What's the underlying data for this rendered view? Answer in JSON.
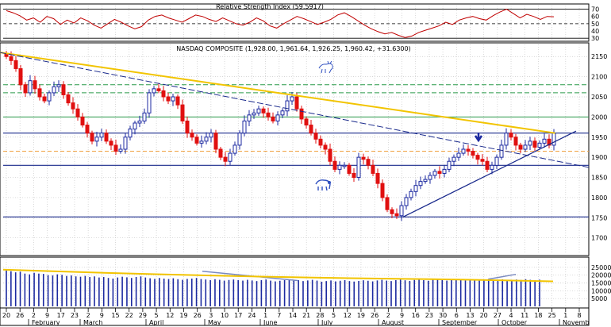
{
  "chart_data": [
    {
      "type": "line",
      "panel": "rsi",
      "title": "Relative Strength Index (59.5917)",
      "ylim": [
        28,
        75
      ],
      "y_ticks": [
        30,
        40,
        50,
        60,
        70
      ],
      "reference_lines": [
        70,
        50,
        30
      ],
      "values": [
        68,
        65,
        61,
        55,
        58,
        52,
        60,
        57,
        49,
        55,
        51,
        58,
        54,
        48,
        44,
        50,
        56,
        52,
        47,
        43,
        46,
        55,
        60,
        62,
        58,
        55,
        52,
        57,
        62,
        60,
        56,
        53,
        58,
        54,
        50,
        48,
        52,
        58,
        54,
        47,
        44,
        50,
        55,
        60,
        57,
        53,
        49,
        52,
        56,
        62,
        65,
        60,
        54,
        48,
        43,
        39,
        36,
        38,
        34,
        31,
        33,
        38,
        41,
        44,
        47,
        52,
        49,
        55,
        58,
        60,
        57,
        55,
        61,
        66,
        70,
        64,
        58,
        63,
        60,
        56,
        60,
        59.6
      ]
    },
    {
      "type": "candlestick",
      "panel": "price",
      "title": "NASDAQ COMPOSITE (1,928.00, 1,961.64, 1,926.25, 1,960.42, +31.6300)",
      "ylim": [
        1660,
        2180
      ],
      "y_ticks": [
        1700,
        1750,
        1800,
        1850,
        1900,
        1950,
        2000,
        2050,
        2100,
        2150
      ],
      "x_tick_labels": [
        "20",
        "26",
        "2",
        "9",
        "17",
        "23",
        "2",
        "9",
        "15",
        "22",
        "29",
        "5",
        "12",
        "19",
        "26",
        "3",
        "10",
        "17",
        "24",
        "1",
        "7",
        "14",
        "21",
        "28",
        "5",
        "12",
        "19",
        "26",
        "2",
        "9",
        "16",
        "23",
        "30",
        "6",
        "13",
        "20",
        "27",
        "4",
        "11",
        "18",
        "25",
        "1",
        "8"
      ],
      "month_labels": [
        "February",
        "March",
        "April",
        "May",
        "June",
        "July",
        "August",
        "September",
        "October",
        "Novemb"
      ],
      "horizontal_levels": [
        1960,
        1880,
        1752
      ],
      "support_levels": [
        1915
      ],
      "resistance_levels": [
        2080,
        2060,
        2000
      ],
      "trendlines": [
        {
          "name": "yellow-downtrend",
          "from": [
            "20",
            2160
          ],
          "to": [
            "25",
            1960
          ]
        },
        {
          "name": "blue-dashed-downtrend",
          "from": [
            "20",
            2160
          ],
          "to": [
            "8",
            1880
          ]
        },
        {
          "name": "blue-uptrend",
          "from": [
            "9",
            1752
          ],
          "to": [
            "8",
            1965
          ]
        }
      ],
      "annotations": [
        "bull-icon",
        "bear-icon",
        "down-arrow-icon"
      ],
      "close_values": [
        2150,
        2140,
        2120,
        2080,
        2060,
        2090,
        2070,
        2050,
        2040,
        2060,
        2075,
        2080,
        2055,
        2035,
        2020,
        2000,
        1980,
        1960,
        1940,
        1950,
        1960,
        1940,
        1930,
        1915,
        1920,
        1950,
        1970,
        1985,
        1990,
        2010,
        2060,
        2070,
        2065,
        2050,
        2040,
        2050,
        2030,
        1990,
        1960,
        1950,
        1935,
        1940,
        1950,
        1960,
        1920,
        1900,
        1890,
        1910,
        1930,
        1960,
        1990,
        2005,
        2010,
        2020,
        2010,
        2000,
        1990,
        2005,
        2015,
        2040,
        2050,
        2020,
        1995,
        1980,
        1960,
        1945,
        1930,
        1920,
        1890,
        1870,
        1880,
        1880,
        1860,
        1850,
        1900,
        1895,
        1880,
        1860,
        1835,
        1800,
        1770,
        1760,
        1755,
        1780,
        1800,
        1815,
        1830,
        1840,
        1845,
        1855,
        1865,
        1860,
        1870,
        1890,
        1900,
        1910,
        1920,
        1915,
        1905,
        1895,
        1890,
        1870,
        1880,
        1900,
        1930,
        1960,
        1950,
        1930,
        1920,
        1930,
        1940,
        1925,
        1935,
        1945,
        1930,
        1960
      ]
    },
    {
      "type": "bar",
      "panel": "volume",
      "ylim": [
        0,
        30000
      ],
      "y_ticks": [
        5000,
        10000,
        15000,
        20000,
        25000
      ],
      "moving_average_value": 16000,
      "values": [
        23000,
        22500,
        21800,
        22200,
        21000,
        20500,
        21500,
        21000,
        20800,
        20000,
        19800,
        20500,
        20200,
        19500,
        19800,
        19200,
        19000,
        19500,
        18800,
        19200,
        18500,
        18800,
        18200,
        17800,
        18500,
        19000,
        18600,
        18200,
        18800,
        19200,
        18500,
        18000,
        17600,
        18200,
        17800,
        17500,
        18000,
        17400,
        17000,
        17600,
        17800,
        18200,
        17500,
        17200,
        16800,
        17400,
        17000,
        16500,
        16900,
        17200,
        16800,
        16500,
        17000,
        16600,
        16200,
        16800,
        17200,
        16500,
        16000,
        16400,
        16800,
        17000,
        16500,
        16800,
        16200,
        16600,
        17000,
        16500,
        15800,
        16200,
        16600,
        16000,
        16400,
        16800,
        16200,
        15900,
        16300,
        16700,
        16400,
        16000,
        16600,
        17000,
        16500,
        16200,
        16800,
        17200,
        16700,
        16300,
        16900,
        17300,
        16800,
        16400,
        17000,
        17400,
        16900,
        16500,
        17100,
        17500,
        16800,
        16600,
        17200,
        16900,
        16500,
        17000,
        17600,
        17200,
        16800,
        17300,
        17000,
        16600,
        17200,
        16900,
        17400,
        17000,
        16700,
        17100
      ]
    }
  ],
  "colors": {
    "up": "#1c2aa0",
    "down": "#e01010",
    "yellow_line": "#f2c400",
    "blue_line": "#1a2a8c",
    "green_line": "#2a9a4a",
    "orange_line": "#f0a040",
    "rsi_line": "#c00000",
    "volume_bar": "#1c2aa0",
    "volume_trend": "#7a8ac0"
  }
}
